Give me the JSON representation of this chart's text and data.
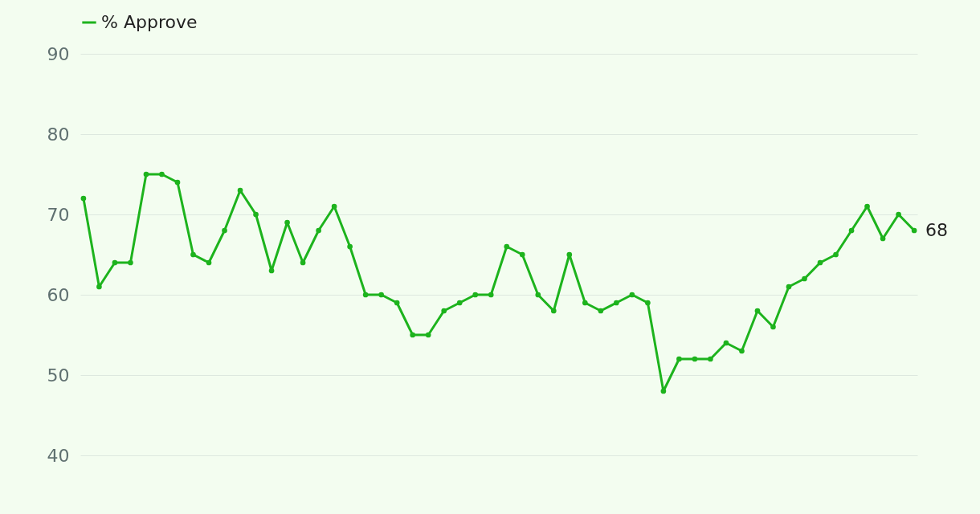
{
  "chart_data": {
    "type": "line",
    "categories": [
      null,
      null,
      null,
      null,
      null,
      null,
      null,
      null,
      null,
      null,
      null,
      null,
      null,
      null,
      null,
      null,
      null,
      null,
      null,
      null,
      null,
      null,
      null,
      null,
      null,
      null,
      null,
      null,
      null,
      null,
      null,
      null,
      null,
      null,
      null,
      null,
      null,
      null,
      null,
      null,
      null,
      null,
      null,
      null,
      null,
      null,
      null,
      null,
      null,
      null,
      null,
      null,
      null,
      null
    ],
    "series": [
      {
        "name": "% Approve",
        "color": "#1db31d",
        "values": [
          72,
          61,
          64,
          64,
          75,
          75,
          74,
          65,
          64,
          68,
          73,
          70,
          63,
          69,
          64,
          68,
          71,
          66,
          60,
          60,
          59,
          55,
          55,
          58,
          59,
          60,
          60,
          66,
          65,
          60,
          58,
          65,
          59,
          58,
          59,
          60,
          59,
          48,
          52,
          52,
          52,
          54,
          53,
          58,
          56,
          61,
          62,
          64,
          65,
          68,
          71,
          67,
          70,
          68
        ],
        "value_labels": [
          null,
          null,
          null,
          null,
          null,
          null,
          null,
          null,
          null,
          null,
          null,
          null,
          null,
          null,
          null,
          null,
          null,
          null,
          null,
          null,
          null,
          null,
          null,
          null,
          null,
          null,
          null,
          null,
          null,
          null,
          null,
          null,
          null,
          null,
          null,
          null,
          null,
          null,
          null,
          null,
          null,
          null,
          null,
          null,
          null,
          null,
          null,
          null,
          null,
          null,
          null,
          null,
          null,
          "68"
        ]
      }
    ],
    "ylim": [
      40,
      90
    ],
    "yticks": [
      40,
      50,
      60,
      70,
      80,
      90
    ],
    "grid": "y",
    "legend": "top left",
    "tick_labels": "y",
    "marker": "circle",
    "line_style": "solid"
  }
}
